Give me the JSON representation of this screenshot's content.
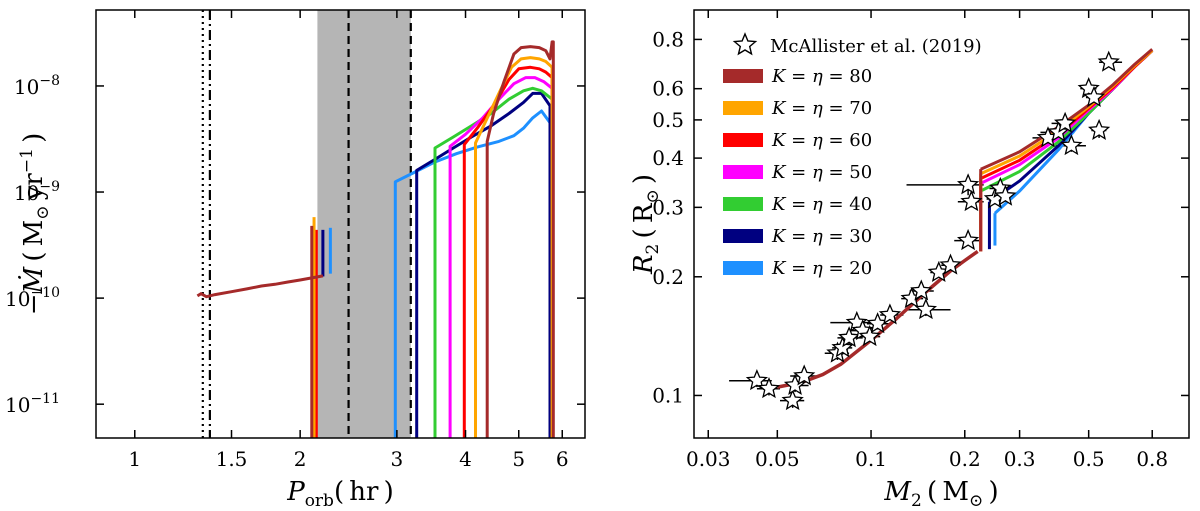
{
  "chart_data": [
    {
      "type": "line",
      "panel": "left",
      "xscale": "log",
      "yscale": "log",
      "xlim": [
        0.85,
        6.6
      ],
      "ylim": [
        4.8e-12,
        5.2e-08
      ],
      "xlabel": "P_orb (hr)",
      "ylabel": "-Ṁ (M⊙ yr⁻¹)",
      "xticks": [
        1,
        1.5,
        2,
        3,
        4,
        5,
        6
      ],
      "xticklabels": [
        "1",
        "1.5",
        "2",
        "3",
        "4",
        "5",
        "6"
      ],
      "yticks": [
        1e-11,
        1e-10,
        1e-09,
        1e-08
      ],
      "yticklabels": [
        "10",
        "10",
        "10",
        "10"
      ],
      "yticklabel_exponents": [
        "-11",
        "-10",
        "-9",
        "-8"
      ],
      "shaded_band": [
        2.15,
        3.18
      ],
      "vlines": [
        {
          "x": 1.33,
          "style": "dotted"
        },
        {
          "x": 1.37,
          "style": "dashdot"
        },
        {
          "x": 2.45,
          "style": "dashed"
        },
        {
          "x": 3.18,
          "style": "dashed"
        }
      ],
      "series": [
        {
          "name": "K=η=80",
          "color": "#a52a2a",
          "detached": {
            "x": [
              1.3,
              1.32,
              1.35,
              1.4,
              1.5,
              1.6,
              1.7,
              1.8,
              1.9,
              2.0,
              2.1,
              2.2
            ],
            "y": [
              1.05e-10,
              1.1e-10,
              1.03e-10,
              1.08e-10,
              1.15e-10,
              1.22e-10,
              1.3e-10,
              1.35e-10,
              1.42e-10,
              1.48e-10,
              1.55e-10,
              1.62e-10
            ]
          },
          "spike": {
            "x": 2.1,
            "ylow": 4.8e-12,
            "yhigh": 4.8e-10
          },
          "main": {
            "x": [
              4.38,
              4.38,
              4.5,
              4.7,
              4.9,
              5.05,
              5.25,
              5.45,
              5.6,
              5.7,
              5.75,
              5.78,
              5.78
            ],
            "y": [
              4.8e-12,
              3e-09,
              5.5e-09,
              1.1e-08,
              2e-08,
              2.3e-08,
              2.35e-08,
              2.3e-08,
              2.15e-08,
              1.8e-08,
              2.6e-08,
              2.6e-08,
              4.8e-12
            ]
          }
        },
        {
          "name": "K=η=70",
          "color": "#ffa500",
          "spike": {
            "x": 2.12,
            "ylow": 4.8e-12,
            "yhigh": 5.8e-10
          },
          "main": {
            "x": [
              4.17,
              4.17,
              4.35,
              4.6,
              4.85,
              5.05,
              5.25,
              5.45,
              5.6,
              5.75,
              5.75
            ],
            "y": [
              4.8e-12,
              2.9e-09,
              4.6e-09,
              8.5e-09,
              1.5e-08,
              1.8e-08,
              1.85e-08,
              1.8e-08,
              1.7e-08,
              1.5e-08,
              4.8e-12
            ]
          }
        },
        {
          "name": "K=η=60",
          "color": "#ff0000",
          "spike": {
            "x": 2.14,
            "ylow": 4.8e-12,
            "yhigh": 4.4e-10
          },
          "main": {
            "x": [
              3.98,
              3.98,
              4.2,
              4.5,
              4.8,
              5.0,
              5.25,
              5.45,
              5.6,
              5.75,
              5.75
            ],
            "y": [
              4.8e-12,
              2.8e-09,
              4e-09,
              6.5e-09,
              1.15e-08,
              1.45e-08,
              1.5e-08,
              1.45e-08,
              1.35e-08,
              1.2e-08,
              4.8e-12
            ]
          }
        },
        {
          "name": "K=η=50",
          "color": "#ff00ff",
          "main": {
            "x": [
              3.75,
              3.75,
              4.0,
              4.3,
              4.6,
              4.9,
              5.15,
              5.35,
              5.55,
              5.75,
              5.75
            ],
            "y": [
              4.8e-12,
              2.7e-09,
              3.5e-09,
              5e-09,
              7.5e-09,
              1.05e-08,
              1.2e-08,
              1.2e-08,
              1.1e-08,
              9.5e-09,
              4.8e-12
            ]
          }
        },
        {
          "name": "K=η=40",
          "color": "#32cd32",
          "main": {
            "x": [
              3.52,
              3.52,
              3.8,
              4.1,
              4.45,
              4.8,
              5.1,
              5.3,
              5.5,
              5.75,
              5.75
            ],
            "y": [
              4.8e-12,
              2.6e-09,
              3.3e-09,
              4.2e-09,
              5.5e-09,
              7.5e-09,
              9e-09,
              9.5e-09,
              9e-09,
              7.5e-09,
              4.8e-12
            ]
          }
        },
        {
          "name": "K=η=30",
          "color": "#000080",
          "spike": {
            "x": 2.2,
            "ylow": 1.6e-10,
            "yhigh": 4.4e-10
          },
          "main": {
            "x": [
              3.26,
              3.26,
              3.5,
              3.8,
              4.1,
              4.45,
              4.8,
              5.1,
              5.3,
              5.5,
              5.7,
              5.7
            ],
            "y": [
              4.8e-12,
              1.6e-09,
              2e-09,
              2.6e-09,
              3.3e-09,
              4.2e-09,
              5.5e-09,
              7e-09,
              8.5e-09,
              8.5e-09,
              6.5e-09,
              4.8e-12
            ]
          }
        },
        {
          "name": "K=η=20",
          "color": "#1e90ff",
          "spike": {
            "x": 2.27,
            "ylow": 1.7e-10,
            "yhigh": 4.6e-10
          },
          "main": {
            "x": [
              2.98,
              2.98,
              3.2,
              3.5,
              3.85,
              4.2,
              4.6,
              4.9,
              5.1,
              5.3,
              5.5,
              5.7,
              5.7
            ],
            "y": [
              4.8e-12,
              1.25e-09,
              1.5e-09,
              1.9e-09,
              2.3e-09,
              2.65e-09,
              3e-09,
              3.4e-09,
              4e-09,
              5e-09,
              5.8e-09,
              4.5e-09,
              4.8e-12
            ]
          }
        }
      ]
    },
    {
      "type": "line+scatter",
      "panel": "right",
      "xscale": "log",
      "yscale": "log",
      "xlim": [
        0.027,
        1.05
      ],
      "ylim": [
        0.078,
        0.95
      ],
      "xlabel": "M_2 (M⊙)",
      "ylabel": "R_2 (R⊙)",
      "xticks": [
        0.03,
        0.05,
        0.1,
        0.2,
        0.3,
        0.5,
        0.8
      ],
      "xticklabels": [
        "0.03",
        "0.05",
        "0.1",
        "0.2",
        "0.3",
        "0.5",
        "0.8"
      ],
      "yticks": [
        0.1,
        0.2,
        0.3,
        0.4,
        0.5,
        0.6,
        0.8
      ],
      "yticklabels": [
        "0.1",
        "0.2",
        "0.3",
        "0.4",
        "0.5",
        "0.6",
        "0.8"
      ],
      "legend": {
        "location": "top-left",
        "observed_label": "McAllister et al. (2019)",
        "entries": [
          {
            "label": "K = η = 80",
            "color": "#a52a2a"
          },
          {
            "label": "K = η = 70",
            "color": "#ffa500"
          },
          {
            "label": "K = η = 60",
            "color": "#ff0000"
          },
          {
            "label": "K = η = 50",
            "color": "#ff00ff"
          },
          {
            "label": "K = η = 40",
            "color": "#32cd32"
          },
          {
            "label": "K = η = 30",
            "color": "#000080"
          },
          {
            "label": "K = η = 20",
            "color": "#1e90ff"
          }
        ]
      },
      "common_track": {
        "x": [
          0.05,
          0.06,
          0.07,
          0.08,
          0.1,
          0.12,
          0.15,
          0.18,
          0.2,
          0.22
        ],
        "y": [
          0.105,
          0.108,
          0.113,
          0.12,
          0.138,
          0.156,
          0.183,
          0.207,
          0.22,
          0.232
        ]
      },
      "upper_tracks": [
        {
          "name": "K=η=20",
          "color": "#1e90ff",
          "jump_x": 0.25,
          "jump_y": [
            0.24,
            0.29
          ],
          "x": [
            0.25,
            0.3,
            0.4,
            0.5,
            0.6,
            0.7,
            0.8
          ],
          "y": [
            0.29,
            0.33,
            0.42,
            0.52,
            0.6,
            0.68,
            0.75
          ]
        },
        {
          "name": "K=η=30",
          "color": "#000080",
          "jump_x": 0.24,
          "jump_y": [
            0.235,
            0.31
          ],
          "x": [
            0.24,
            0.3,
            0.4,
            0.5,
            0.6,
            0.7,
            0.8
          ],
          "y": [
            0.31,
            0.35,
            0.43,
            0.52,
            0.6,
            0.68,
            0.75
          ]
        },
        {
          "name": "K=η=40",
          "color": "#32cd32",
          "jump_x": 0.225,
          "jump_y": [
            0.232,
            0.33
          ],
          "x": [
            0.225,
            0.3,
            0.4,
            0.5,
            0.6,
            0.7,
            0.8
          ],
          "y": [
            0.33,
            0.37,
            0.44,
            0.52,
            0.6,
            0.68,
            0.75
          ]
        },
        {
          "name": "K=η=50",
          "color": "#ff00ff",
          "jump_x": 0.225,
          "jump_y": [
            0.232,
            0.345
          ],
          "x": [
            0.225,
            0.3,
            0.4,
            0.5,
            0.6,
            0.7,
            0.8
          ],
          "y": [
            0.345,
            0.385,
            0.45,
            0.53,
            0.6,
            0.68,
            0.75
          ]
        },
        {
          "name": "K=η=60",
          "color": "#ff0000",
          "jump_x": 0.225,
          "jump_y": [
            0.232,
            0.355
          ],
          "x": [
            0.225,
            0.3,
            0.4,
            0.5,
            0.6,
            0.7,
            0.8
          ],
          "y": [
            0.355,
            0.395,
            0.46,
            0.535,
            0.605,
            0.68,
            0.75
          ]
        },
        {
          "name": "K=η=70",
          "color": "#ffa500",
          "jump_x": 0.225,
          "jump_y": [
            0.232,
            0.365
          ],
          "x": [
            0.225,
            0.3,
            0.4,
            0.5,
            0.6,
            0.7,
            0.8
          ],
          "y": [
            0.365,
            0.405,
            0.47,
            0.54,
            0.61,
            0.685,
            0.75
          ]
        },
        {
          "name": "K=η=80",
          "color": "#a52a2a",
          "jump_x": 0.225,
          "jump_y": [
            0.232,
            0.375
          ],
          "x": [
            0.225,
            0.3,
            0.4,
            0.5,
            0.6,
            0.7,
            0.8
          ],
          "y": [
            0.375,
            0.415,
            0.48,
            0.545,
            0.615,
            0.69,
            0.755
          ]
        }
      ],
      "observed": [
        {
          "x": 0.043,
          "y": 0.109,
          "xerr": [
            0.008,
            0.005
          ],
          "yerr": 0.004
        },
        {
          "x": 0.047,
          "y": 0.104,
          "xerr": [
            0.004,
            0.004
          ],
          "yerr": 0.004
        },
        {
          "x": 0.056,
          "y": 0.097,
          "xerr": [
            0.005,
            0.005
          ],
          "yerr": 0.004
        },
        {
          "x": 0.057,
          "y": 0.106,
          "xerr": [
            0.005,
            0.006
          ],
          "yerr": 0.004
        },
        {
          "x": 0.061,
          "y": 0.112,
          "xerr": [
            0.006,
            0.008
          ],
          "yerr": 0.004
        },
        {
          "x": 0.078,
          "y": 0.128,
          "xerr": [
            0.007,
            0.007
          ],
          "yerr": 0.005
        },
        {
          "x": 0.081,
          "y": 0.132,
          "xerr": [
            0.006,
            0.006
          ],
          "yerr": 0.005
        },
        {
          "x": 0.085,
          "y": 0.14,
          "xerr": [
            0.007,
            0.009
          ],
          "yerr": 0.005
        },
        {
          "x": 0.09,
          "y": 0.153,
          "xerr": [
            0.016,
            0.014
          ],
          "yerr": 0.005
        },
        {
          "x": 0.094,
          "y": 0.146,
          "xerr": [
            0.008,
            0.008
          ],
          "yerr": 0.005
        },
        {
          "x": 0.099,
          "y": 0.141,
          "xerr": [
            0.007,
            0.008
          ],
          "yerr": 0.005
        },
        {
          "x": 0.105,
          "y": 0.152,
          "xerr": [
            0.008,
            0.01
          ],
          "yerr": 0.005
        },
        {
          "x": 0.115,
          "y": 0.16,
          "xerr": [
            0.008,
            0.012
          ],
          "yerr": 0.005
        },
        {
          "x": 0.135,
          "y": 0.176,
          "xerr": [
            0.01,
            0.012
          ],
          "yerr": 0.005
        },
        {
          "x": 0.145,
          "y": 0.184,
          "xerr": [
            0.012,
            0.014
          ],
          "yerr": 0.006
        },
        {
          "x": 0.15,
          "y": 0.165,
          "xerr": [
            0.02,
            0.03
          ],
          "yerr": 0.006
        },
        {
          "x": 0.165,
          "y": 0.205,
          "xerr": [
            0.01,
            0.012
          ],
          "yerr": 0.006
        },
        {
          "x": 0.18,
          "y": 0.214,
          "xerr": [
            0.012,
            0.014
          ],
          "yerr": 0.006
        },
        {
          "x": 0.205,
          "y": 0.247,
          "xerr": [
            0.02,
            0.02
          ],
          "yerr": 0.007
        },
        {
          "x": 0.205,
          "y": 0.342,
          "xerr": [
            0.075,
            0.025
          ],
          "yerr": 0.02
        },
        {
          "x": 0.21,
          "y": 0.31,
          "xerr": [
            0.02,
            0.02
          ],
          "yerr": 0.01
        },
        {
          "x": 0.25,
          "y": 0.315,
          "xerr": [
            0.015,
            0.02
          ],
          "yerr": 0.01
        },
        {
          "x": 0.26,
          "y": 0.335,
          "xerr": [
            0.02,
            0.02
          ],
          "yerr": 0.01
        },
        {
          "x": 0.27,
          "y": 0.32,
          "xerr": [
            0.015,
            0.02
          ],
          "yerr": 0.01
        },
        {
          "x": 0.37,
          "y": 0.45,
          "xerr": [
            0.04,
            0.05
          ],
          "yerr": 0.015
        },
        {
          "x": 0.4,
          "y": 0.465,
          "xerr": [
            0.05,
            0.05
          ],
          "yerr": 0.015
        },
        {
          "x": 0.42,
          "y": 0.49,
          "xerr": [
            0.04,
            0.05
          ],
          "yerr": 0.015
        },
        {
          "x": 0.44,
          "y": 0.43,
          "xerr": [
            0.05,
            0.05
          ],
          "yerr": 0.015
        },
        {
          "x": 0.5,
          "y": 0.6,
          "xerr": [
            0.03,
            0.03
          ],
          "yerr": 0.02
        },
        {
          "x": 0.52,
          "y": 0.57,
          "xerr": [
            0.03,
            0.04
          ],
          "yerr": 0.02
        },
        {
          "x": 0.54,
          "y": 0.47,
          "xerr": [
            0.03,
            0.03
          ],
          "yerr": 0.02
        },
        {
          "x": 0.58,
          "y": 0.7,
          "xerr": [
            0.04,
            0.06
          ],
          "yerr": 0.02
        }
      ]
    }
  ]
}
